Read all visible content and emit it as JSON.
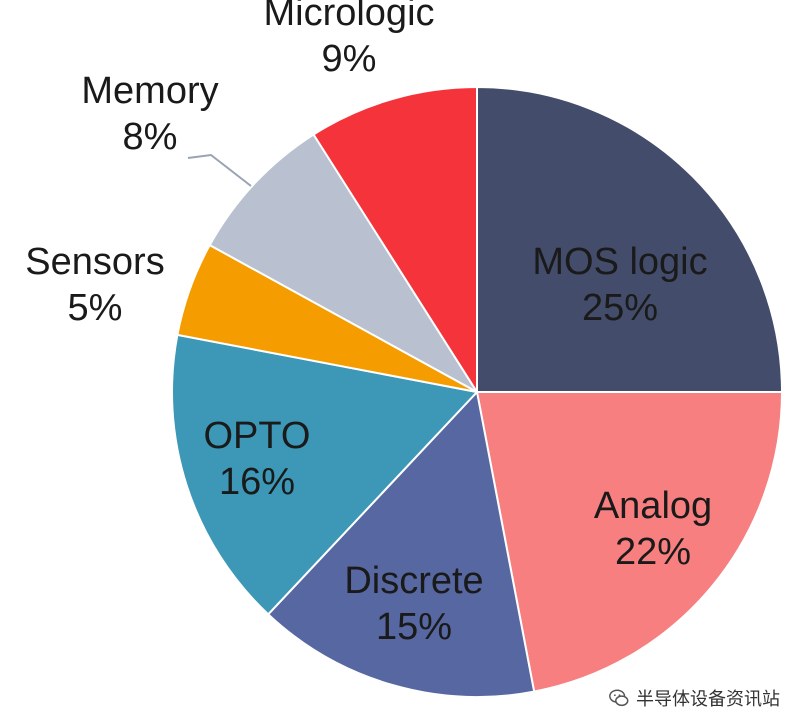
{
  "chart_data": {
    "type": "pie",
    "slices": [
      {
        "label": "MOS logic",
        "value": 25,
        "pct": "25%",
        "color": "#434d6b"
      },
      {
        "label": "Analog",
        "value": 22,
        "pct": "22%",
        "color": "#f77f7f"
      },
      {
        "label": "Discrete",
        "value": 15,
        "pct": "15%",
        "color": "#5767a1"
      },
      {
        "label": "OPTO",
        "value": 16,
        "pct": "16%",
        "color": "#3d98b7"
      },
      {
        "label": "Sensors",
        "value": 5,
        "pct": "5%",
        "color": "#f59c00"
      },
      {
        "label": "Memory",
        "value": 8,
        "pct": "8%",
        "color": "#b9c0cf"
      },
      {
        "label": "Micrologic",
        "value": 9,
        "pct": "9%",
        "color": "#f4333a"
      }
    ]
  },
  "watermark": {
    "text": "半导体设备资讯站",
    "icon": "wechat-icon"
  }
}
